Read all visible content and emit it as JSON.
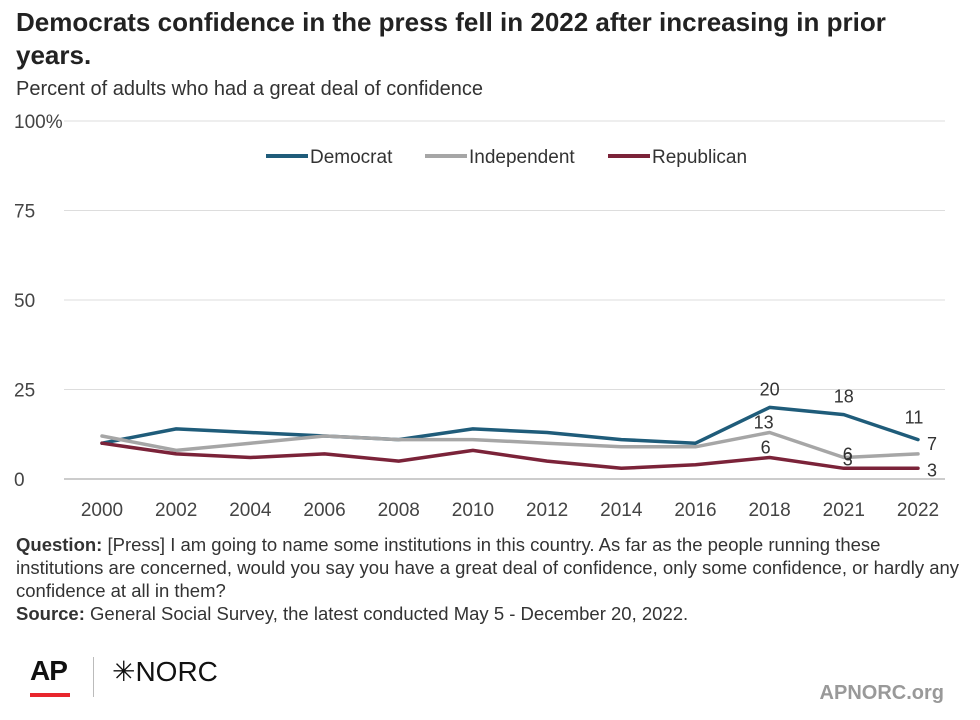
{
  "title": "Democrats confidence in the press fell in 2022 after increasing in prior years.",
  "subtitle": "Percent of adults who had a great deal of confidence",
  "chart_data": {
    "type": "line",
    "categories": [
      "2000",
      "2002",
      "2004",
      "2006",
      "2008",
      "2010",
      "2012",
      "2014",
      "2016",
      "2018",
      "2021",
      "2022"
    ],
    "y_tick_labels": [
      "0",
      "25",
      "50",
      "75",
      "100%"
    ],
    "ylim": [
      0,
      100
    ],
    "grid": true,
    "legend_position": "top",
    "series": [
      {
        "name": "Democrat",
        "color": "#1f5c7a",
        "values": [
          10,
          14,
          13,
          12,
          11,
          14,
          13,
          11,
          10,
          20,
          18,
          11
        ],
        "labels": {
          "9": "20",
          "10": "18",
          "11": "11"
        }
      },
      {
        "name": "Independent",
        "color": "#a6a6a6",
        "values": [
          12,
          8,
          10,
          12,
          11,
          11,
          10,
          9,
          9,
          13,
          6,
          7
        ],
        "labels": {
          "9": "13",
          "10": "6",
          "11": "7"
        }
      },
      {
        "name": "Republican",
        "color": "#7b2339",
        "values": [
          10,
          7,
          6,
          7,
          5,
          8,
          5,
          3,
          4,
          6,
          3,
          3
        ],
        "labels": {
          "9": "6",
          "10": "3",
          "11": "3"
        }
      }
    ]
  },
  "notes": {
    "question_label": "Question:",
    "question_text": " [Press] I am going to name some institutions in this country. As far as the people running these institutions are concerned, would you say you have a great deal of confidence, only some confidence, or hardly any confidence at all in them?",
    "source_label": "Source:",
    "source_text": " General Social Survey, the latest conducted May 5 - December 20, 2022."
  },
  "footer": {
    "logo_ap": "AP",
    "logo_norc": "✳NORC",
    "site": "APNORC.org"
  }
}
